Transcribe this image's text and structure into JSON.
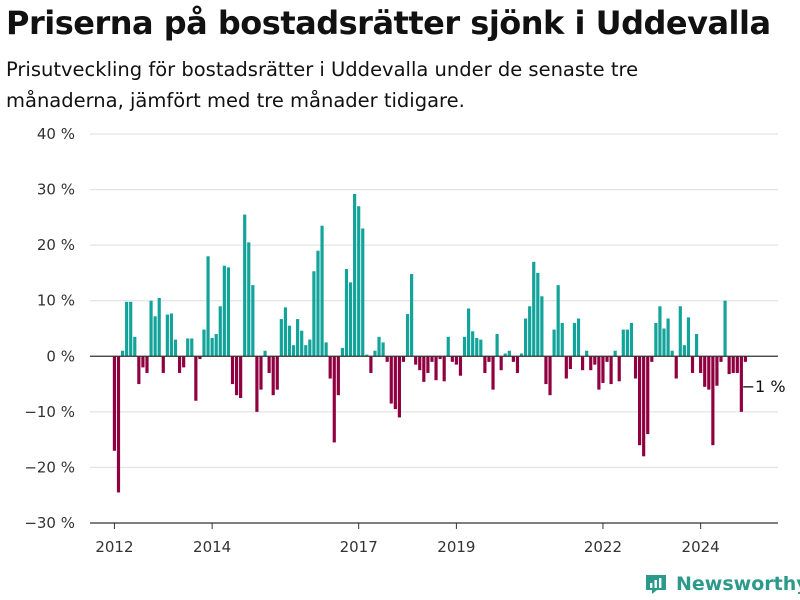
{
  "title": "Priserna på bostadsrätter sjönk i Uddevalla",
  "subtitle": "Prisutveckling för bostadsrätter i Uddevalla under de senaste tre månaderna, jämfört med tre månader tidigare.",
  "brand": {
    "name": "Newsworthy",
    "color": "#2c9a8a"
  },
  "colors": {
    "positive": "#12a39a",
    "negative": "#900040",
    "grid": "#dddddd",
    "axis": "#333333"
  },
  "chart_data": {
    "type": "bar",
    "xlabel": "",
    "ylabel": "",
    "ylim": [
      -30,
      40
    ],
    "yticks": [
      40,
      30,
      20,
      10,
      0,
      -10,
      -20,
      -30
    ],
    "ytick_labels": [
      "40 %",
      "30 %",
      "20 %",
      "10 %",
      "0 %",
      "−10 %",
      "−20 %",
      "−30 %"
    ],
    "xlim": [
      "2011-07",
      "2025-08"
    ],
    "xticks": [
      {
        "date": "2012-01",
        "label": "2012"
      },
      {
        "date": "2014-01",
        "label": "2014"
      },
      {
        "date": "2017-01",
        "label": "2017"
      },
      {
        "date": "2019-01",
        "label": "2019"
      },
      {
        "date": "2022-01",
        "label": "2022"
      },
      {
        "date": "2024-01",
        "label": "2024"
      }
    ],
    "grid": true,
    "legend": "none",
    "annotation": {
      "text": "−1 %",
      "date": "2025-03",
      "value": -1
    },
    "series": [
      {
        "start": "2012-01",
        "frequency": "monthly",
        "values": [
          -17,
          -24.5,
          1,
          9.8,
          9.8,
          3.5,
          -5,
          -2,
          -3,
          10,
          7.2,
          10.5,
          -3,
          7.5,
          7.7,
          3,
          -3,
          -2,
          3.2,
          3.2,
          -8,
          -0.5,
          4.8,
          18,
          3.3,
          4,
          9,
          16.3,
          16,
          -5,
          -7,
          -7.5,
          25.5,
          20.5,
          12.8,
          -10,
          -6,
          1,
          -3,
          -7,
          -6,
          6.7,
          8.8,
          5.5,
          2,
          6.7,
          4.6,
          2,
          3,
          15.3,
          19,
          23.5,
          2.5,
          -4,
          -15.5,
          -7,
          1.5,
          15.7,
          13.3,
          29.2,
          27,
          23,
          0.3,
          -3,
          1,
          3.5,
          2.5,
          -1,
          -8.5,
          -9.5,
          -11,
          -1,
          7.6,
          14.8,
          -1.5,
          -2.5,
          -4.6,
          -3,
          -1,
          -4.3,
          -0.5,
          -4.5,
          3.5,
          -1,
          -1.5,
          -3.5,
          3.5,
          8.6,
          4.5,
          3.3,
          3,
          -3,
          -1,
          -6,
          4,
          -2.5,
          0.5,
          1,
          -1,
          -3,
          0.5,
          6.8,
          9,
          17,
          15,
          10.8,
          -5,
          -7,
          4.8,
          12.8,
          6,
          -4,
          -2.3,
          6,
          6.8,
          -2.5,
          1,
          -2.5,
          -1.5,
          -6,
          -4.8,
          -1,
          -5,
          1,
          -4.5,
          4.8,
          4.8,
          6,
          -4,
          -16,
          -18,
          -14,
          -1,
          6,
          9,
          5,
          6.8,
          1,
          -4,
          9,
          2,
          7,
          -3,
          4,
          -3,
          -5.5,
          -6,
          -16,
          -5.3,
          -1,
          10,
          -3.2,
          -3,
          -3,
          -10,
          -1
        ]
      }
    ]
  }
}
